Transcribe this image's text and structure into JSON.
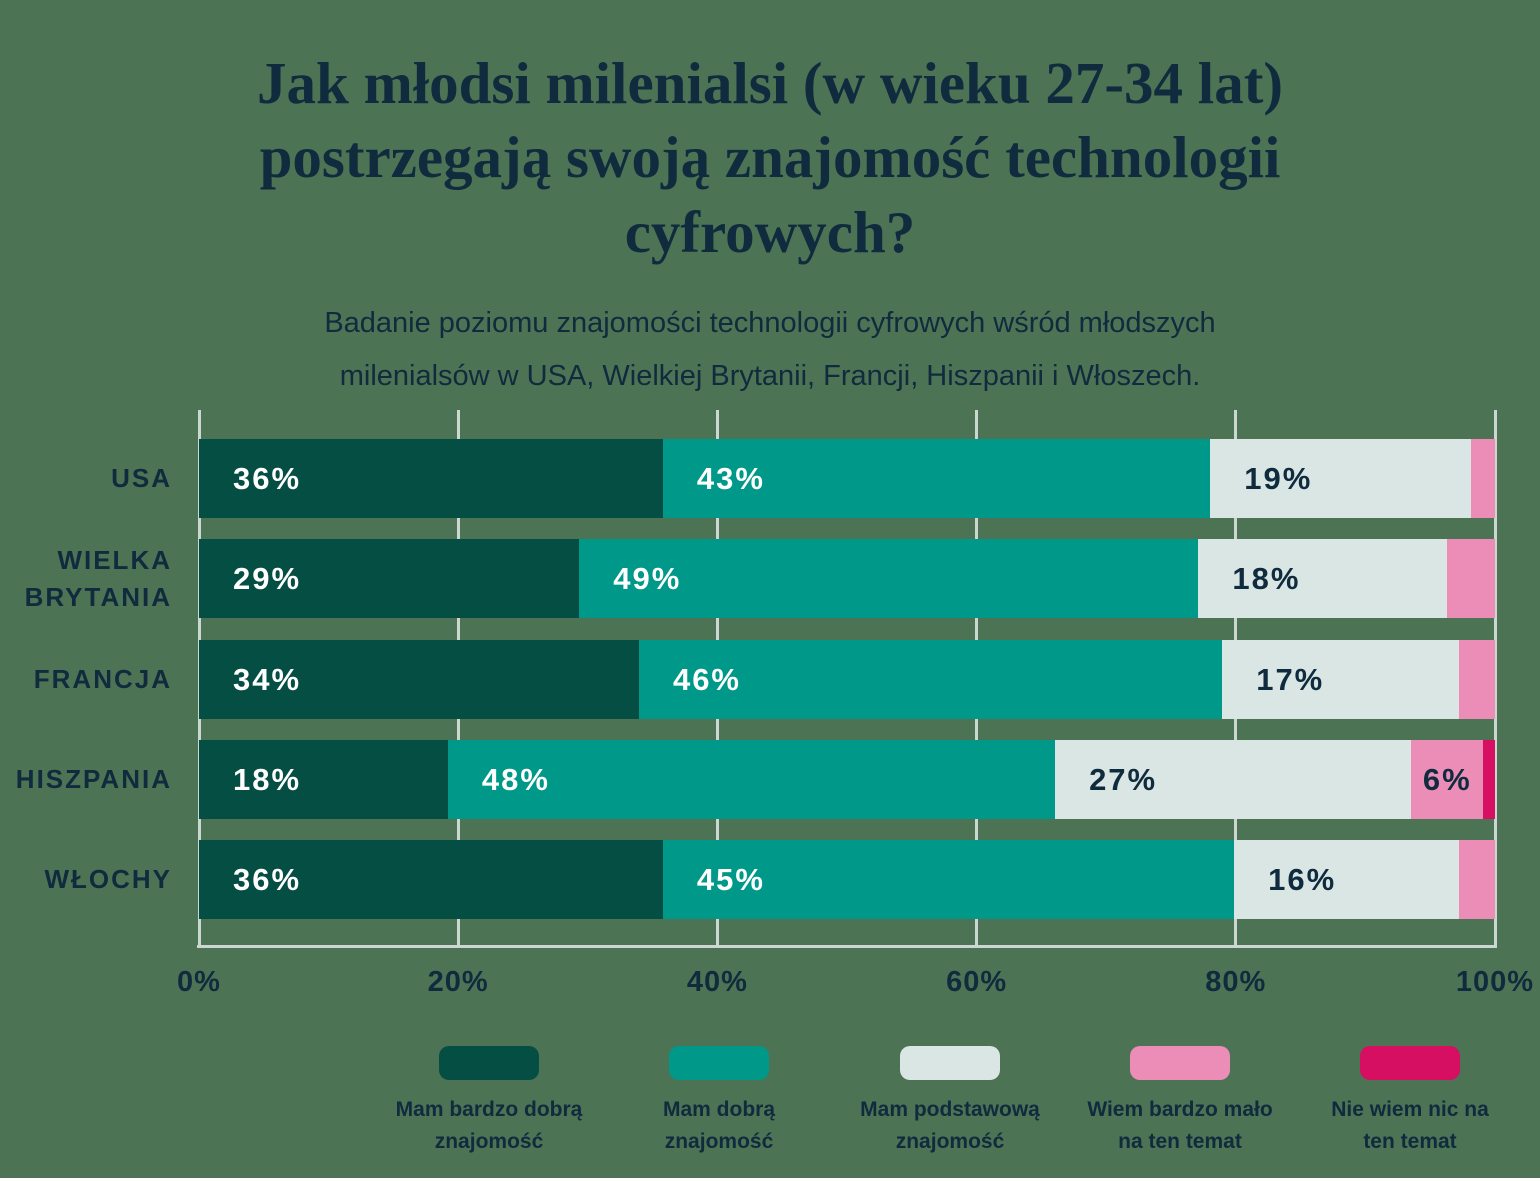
{
  "page": {
    "background_color": "#4d7355",
    "text_color": "#0f2b3d"
  },
  "title": {
    "lines": [
      "Jak młodsi milenialsi (w wieku 27-34 lat)",
      "postrzegają swoją znajomość technologii",
      "cyfrowych?"
    ]
  },
  "subtitle": {
    "lines": [
      "Badanie poziomu znajomości technologii cyfrowych wśród młodszych",
      "milenialsów w USA, Wielkiej Brytanii, Francji, Hiszpanii i Włoszech."
    ]
  },
  "chart_data": {
    "type": "bar",
    "orientation": "horizontal",
    "stacked": true,
    "grid": true,
    "xlim": [
      0,
      100
    ],
    "x_ticks": [
      "0%",
      "20%",
      "40%",
      "60%",
      "80%",
      "100%"
    ],
    "categories": [
      "USA",
      "WIELKA BRYTANIA",
      "FRANCJA",
      "HISZPANIA",
      "WŁOCHY"
    ],
    "series": [
      {
        "name": "Mam bardzo dobrą znajomość",
        "color": "#044e44",
        "label_color": "#ffffff",
        "values": [
          36,
          29,
          34,
          18,
          36
        ],
        "labels": [
          "36%",
          "29%",
          "34%",
          "18%",
          "36%"
        ]
      },
      {
        "name": "Mam dobrą znajomość",
        "color": "#009889",
        "label_color": "#ffffff",
        "values": [
          43,
          49,
          46,
          48,
          45
        ],
        "labels": [
          "43%",
          "49%",
          "46%",
          "48%",
          "45%"
        ]
      },
      {
        "name": "Mam podstawową znajomość",
        "color": "#d9e6e4",
        "label_color": "#0f2b3d",
        "values": [
          19,
          18,
          17,
          27,
          16
        ],
        "labels": [
          "19%",
          "18%",
          "17%",
          "27%",
          "16%"
        ]
      },
      {
        "name": "Wiem bardzo mało na ten temat",
        "color": "#ec8db8",
        "label_color": "#0f2b3d",
        "values": [
          2,
          4,
          3,
          6,
          3
        ],
        "labels": [
          "",
          "",
          "",
          "6%",
          ""
        ]
      },
      {
        "name": "Nie wiem nic na ten temat",
        "color": "#d60f62",
        "label_color": "#ffffff",
        "values": [
          0,
          0,
          0,
          1,
          0
        ],
        "labels": [
          "",
          "",
          "",
          "",
          ""
        ]
      }
    ],
    "legend_position": "bottom"
  },
  "legend": {
    "items": [
      {
        "color": "#044e44",
        "lines": [
          "Mam bardzo dobrą",
          "znajomość"
        ]
      },
      {
        "color": "#009889",
        "lines": [
          "Mam dobrą",
          "znajomość"
        ]
      },
      {
        "color": "#d9e6e4",
        "lines": [
          "Mam podstawową",
          "znajomość"
        ]
      },
      {
        "color": "#ec8db8",
        "lines": [
          "Wiem bardzo mało",
          "na ten temat"
        ]
      },
      {
        "color": "#d60f62",
        "lines": [
          "Nie wiem nic na",
          "ten temat"
        ]
      }
    ]
  }
}
